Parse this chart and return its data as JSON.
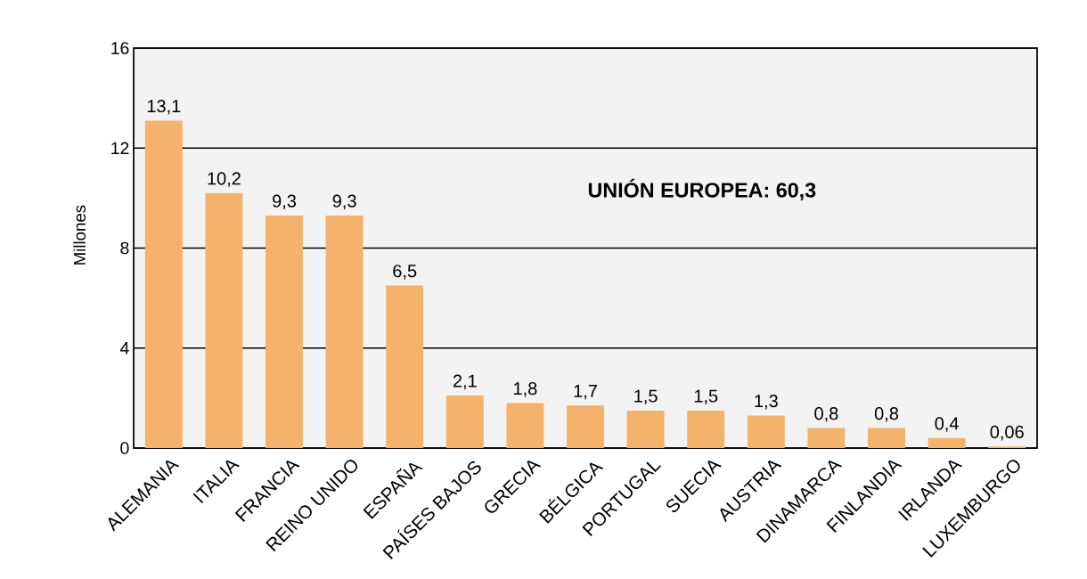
{
  "chart_data": {
    "type": "bar",
    "ylabel": "Millones",
    "categories": [
      "ALEMANIA",
      "ITALIA",
      "FRANCIA",
      "REINO UNIDO",
      "ESPAÑA",
      "PAÍSES BAJOS",
      "GRECIA",
      "BÉLGICA",
      "PORTUGAL",
      "SUECIA",
      "AUSTRIA",
      "DINAMARCA",
      "FINLANDIA",
      "IRLANDA",
      "LUXEMBURGO"
    ],
    "values": [
      13.1,
      10.2,
      9.3,
      9.3,
      6.5,
      2.1,
      1.8,
      1.7,
      1.5,
      1.5,
      1.3,
      0.8,
      0.8,
      0.4,
      0.06
    ],
    "value_labels": [
      "13,1",
      "10,2",
      "9,3",
      "9,3",
      "6,5",
      "2,1",
      "1,8",
      "1,7",
      "1,5",
      "1,5",
      "1,3",
      "0,8",
      "0,8",
      "0,4",
      "0,06"
    ],
    "color": "#f4b26a",
    "ylim": [
      0,
      16
    ],
    "yticks": [
      0,
      4,
      8,
      12,
      16
    ],
    "grid": "y",
    "annotations": [
      "UNIÓN EUROPEA: 60,3"
    ]
  }
}
